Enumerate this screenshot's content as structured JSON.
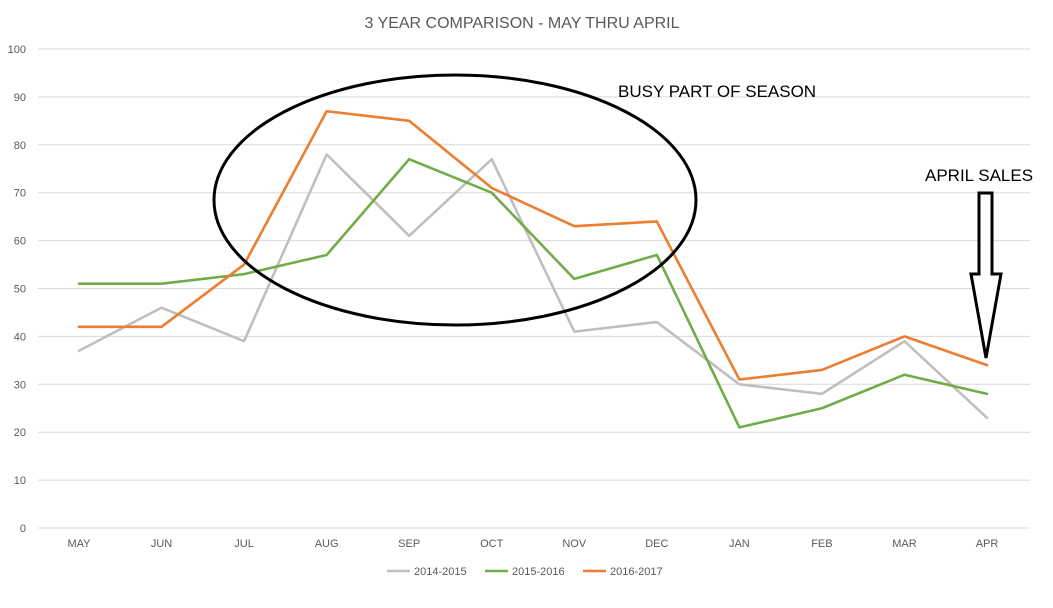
{
  "chart_data": {
    "type": "line",
    "title": "3 YEAR COMPARISON - MAY THRU APRIL",
    "xlabel": "",
    "ylabel": "",
    "categories": [
      "MAY",
      "JUN",
      "JUL",
      "AUG",
      "SEP",
      "OCT",
      "NOV",
      "DEC",
      "JAN",
      "FEB",
      "MAR",
      "APR"
    ],
    "ylim": [
      0,
      100
    ],
    "yticks": [
      0,
      10,
      20,
      30,
      40,
      50,
      60,
      70,
      80,
      90,
      100
    ],
    "grid": true,
    "legend_position": "bottom",
    "series": [
      {
        "name": "2014-2015",
        "color": "#bfbfbf",
        "values": [
          37,
          46,
          39,
          78,
          61,
          77,
          41,
          43,
          30,
          28,
          39,
          23
        ]
      },
      {
        "name": "2015-2016",
        "color": "#70ad47",
        "values": [
          51,
          51,
          53,
          57,
          77,
          70,
          52,
          57,
          21,
          25,
          32,
          28
        ]
      },
      {
        "name": "2016-2017",
        "color": "#ed7d31",
        "values": [
          42,
          42,
          55,
          87,
          85,
          71,
          63,
          64,
          31,
          33,
          40,
          34
        ]
      }
    ],
    "annotations": {
      "busy": "BUSY PART OF SEASON",
      "april": "APRIL SALES"
    }
  }
}
